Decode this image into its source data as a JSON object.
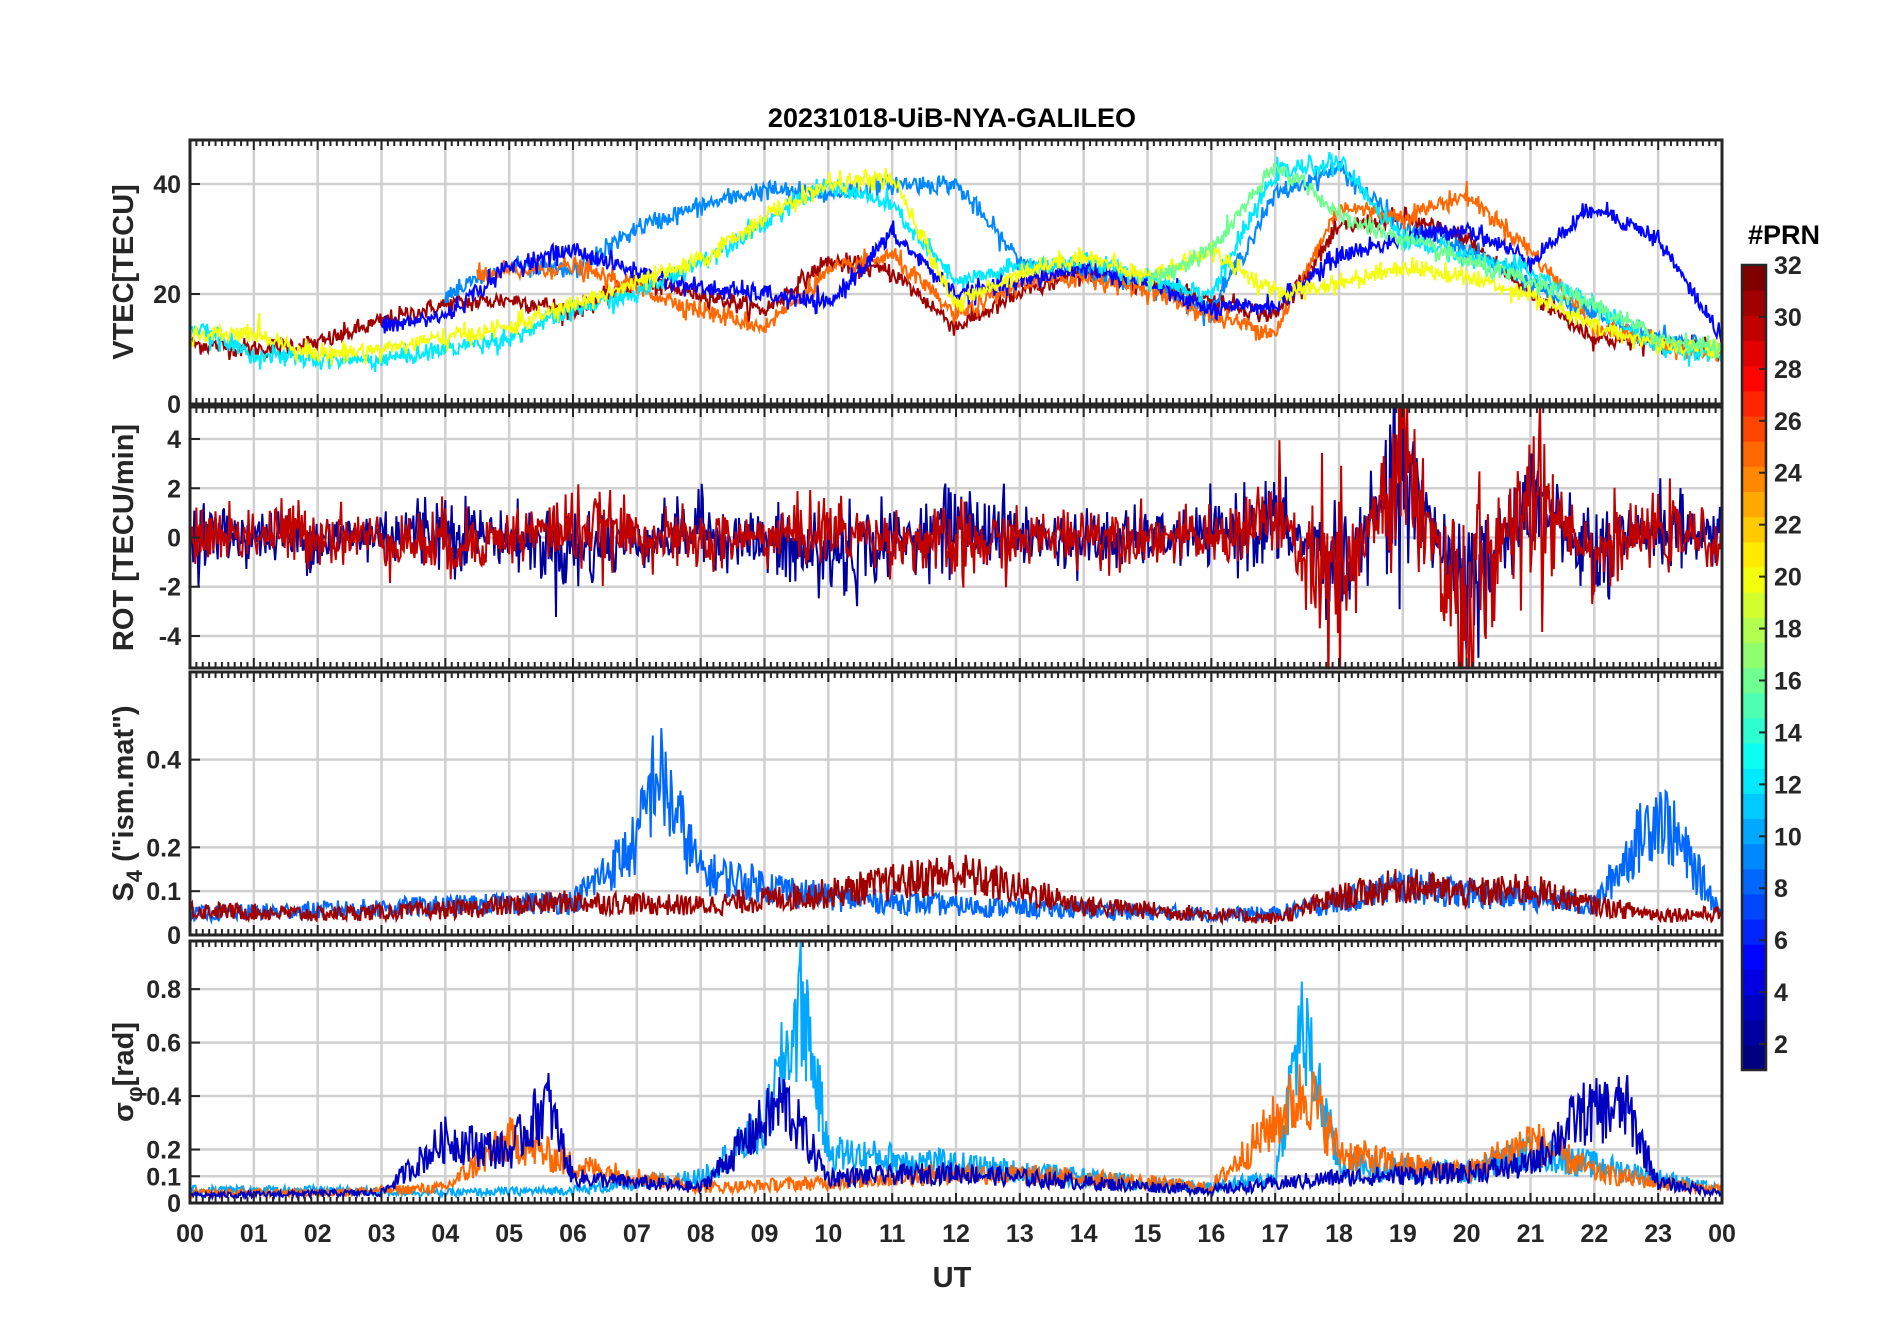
{
  "title": "20231018-UiB-NYA-GALILEO",
  "xlabel": "UT",
  "x_tick_labels": [
    "00",
    "01",
    "02",
    "03",
    "04",
    "05",
    "06",
    "07",
    "08",
    "09",
    "10",
    "11",
    "12",
    "13",
    "14",
    "15",
    "16",
    "17",
    "18",
    "19",
    "20",
    "21",
    "22",
    "23",
    "00"
  ],
  "colorbar": {
    "title": "#PRN",
    "range": [
      1,
      32
    ],
    "tick_labels": [
      "2",
      "4",
      "6",
      "8",
      "10",
      "12",
      "14",
      "16",
      "18",
      "20",
      "22",
      "24",
      "26",
      "28",
      "30",
      "32"
    ],
    "colormap": "jet",
    "levels": 32
  },
  "panels": [
    {
      "id": "vtec",
      "ylabel": "VTEC[TECU]",
      "ylim": [
        0,
        48
      ],
      "y_ticks": [
        0,
        20,
        40
      ],
      "y_tick_labels": [
        "0",
        "20",
        "40"
      ]
    },
    {
      "id": "rot",
      "ylabel": "ROT [TECU/min]",
      "ylim": [
        -5.3,
        5.3
      ],
      "y_ticks": [
        -4,
        -2,
        0,
        2,
        4
      ],
      "y_tick_labels": [
        "-4",
        "-2",
        "0",
        "2",
        "4"
      ]
    },
    {
      "id": "s4",
      "ylabel_main": "S",
      "ylabel_sub": "4",
      "ylabel_rest": " (\"ism.mat\")",
      "ylim": [
        0,
        0.6
      ],
      "y_ticks": [
        0,
        0.1,
        0.2,
        0.4
      ],
      "y_tick_labels": [
        "0",
        "0.1",
        "0.2",
        "0.4"
      ]
    },
    {
      "id": "sigma",
      "ylabel_main": "σ",
      "ylabel_sub": "φ",
      "ylabel_rest": "[rad]",
      "ylim": [
        0,
        0.98
      ],
      "y_ticks": [
        0,
        0.1,
        0.2,
        0.4,
        0.6,
        0.8
      ],
      "y_tick_labels": [
        "0",
        "0.1",
        "0.2",
        "0.4",
        "0.6",
        "0.8"
      ]
    }
  ],
  "chart_data": {
    "type": "line",
    "title": "20231018-UiB-NYA-GALILEO",
    "xlabel": "UT",
    "xlim": [
      0,
      24
    ],
    "x_unit": "hours",
    "color_by": "PRN",
    "note_series": "Per-satellite time series, approximate envelope shape per panel",
    "series": [
      {
        "prn": 31,
        "panel": "vtec",
        "x": [
          0,
          1,
          2,
          3,
          4,
          5,
          6,
          7,
          8,
          9,
          10,
          11,
          12,
          13,
          14,
          15,
          16,
          17,
          18,
          19,
          20,
          21,
          22,
          23,
          24
        ],
        "y": [
          11,
          10,
          11,
          15,
          18,
          19,
          17,
          22,
          20,
          17,
          26,
          24,
          14,
          20,
          24,
          22,
          19,
          16,
          32,
          34,
          30,
          20,
          12,
          11,
          10
        ]
      },
      {
        "prn": 9,
        "panel": "vtec",
        "x": [
          4,
          5,
          6,
          7,
          8,
          9,
          10,
          11,
          12,
          13,
          14,
          15,
          16,
          17,
          18,
          19,
          20,
          21,
          22,
          23,
          24
        ],
        "y": [
          20,
          25,
          24,
          32,
          36,
          39,
          38,
          40,
          40,
          26,
          24,
          22,
          17,
          38,
          43,
          32,
          28,
          22,
          16,
          12,
          10
        ]
      },
      {
        "prn": 25,
        "panel": "vtec",
        "x": [
          4.5,
          5,
          6,
          7,
          8,
          9,
          10,
          11,
          12,
          13,
          14,
          15,
          16,
          17,
          18,
          19,
          20,
          21,
          22,
          23,
          24
        ],
        "y": [
          23,
          24,
          25,
          21,
          17,
          14,
          24,
          27,
          16,
          22,
          23,
          21,
          16,
          13,
          36,
          34,
          38,
          28,
          14,
          11,
          9
        ]
      },
      {
        "prn": 5,
        "panel": "vtec",
        "x": [
          3,
          4,
          5,
          6,
          7,
          8,
          9,
          10,
          11,
          12,
          13,
          14,
          15,
          16,
          17,
          18,
          19,
          20,
          21,
          22,
          23,
          24
        ],
        "y": [
          14,
          16,
          25,
          28,
          24,
          21,
          20,
          18,
          31,
          20,
          22,
          25,
          22,
          17,
          18,
          27,
          30,
          32,
          26,
          36,
          30,
          12
        ]
      },
      {
        "prn": 12,
        "panel": "vtec",
        "x": [
          0,
          1,
          2,
          3,
          4,
          5,
          6,
          7,
          8,
          9,
          10,
          11,
          12,
          13,
          14,
          15,
          16,
          17,
          18,
          19,
          20,
          21,
          22,
          23,
          24
        ],
        "y": [
          14,
          9,
          8,
          8,
          10,
          12,
          17,
          20,
          26,
          33,
          40,
          36,
          22,
          25,
          26,
          23,
          20,
          42,
          44,
          30,
          27,
          24,
          18,
          10,
          9
        ]
      },
      {
        "prn": 20,
        "panel": "vtec",
        "x": [
          0,
          1,
          2,
          3,
          4,
          5,
          6,
          7,
          8,
          9,
          10,
          11,
          12,
          13,
          14,
          15,
          16,
          17,
          18,
          19,
          20,
          21,
          22,
          23,
          24
        ],
        "y": [
          12,
          13,
          9,
          10,
          12,
          14,
          18,
          22,
          26,
          34,
          40,
          41,
          18,
          24,
          27,
          23,
          28,
          20,
          22,
          25,
          23,
          20,
          14,
          11,
          10
        ]
      },
      {
        "prn": 16,
        "panel": "vtec",
        "x": [
          15,
          16,
          17,
          17.5,
          18,
          19,
          20,
          21,
          22,
          23,
          24
        ],
        "y": [
          22,
          28,
          43,
          40,
          34,
          30,
          26,
          22,
          18,
          12,
          10
        ]
      },
      {
        "prn": 2,
        "panel": "rot",
        "x": [
          0,
          2,
          4,
          6,
          8,
          10,
          12,
          14,
          16,
          17,
          18,
          19,
          20,
          21,
          22,
          23,
          24
        ],
        "y": [
          0.2,
          -0.1,
          0.4,
          -0.5,
          0.3,
          -0.8,
          0.5,
          -0.2,
          0.1,
          0.6,
          -1.2,
          2.1,
          -1.8,
          1.4,
          -0.9,
          0.4,
          0
        ]
      },
      {
        "prn": 30,
        "panel": "rot",
        "x": [
          0,
          2,
          4,
          6,
          8,
          10,
          12,
          14,
          16,
          17,
          18,
          19,
          20,
          21,
          22,
          23,
          24
        ],
        "y": [
          0.1,
          0.2,
          -0.3,
          0.4,
          -0.2,
          0.3,
          -0.4,
          0.2,
          -0.1,
          0.8,
          -2.5,
          3.1,
          -3.4,
          2.2,
          -0.6,
          0.3,
          -0.2
        ]
      },
      {
        "prn": 8,
        "panel": "s4",
        "x": [
          0,
          2,
          4,
          6,
          7,
          7.3,
          8,
          9,
          10,
          12,
          14,
          16,
          17,
          18,
          19,
          20,
          21,
          22,
          23,
          24
        ],
        "y": [
          0.05,
          0.06,
          0.07,
          0.08,
          0.22,
          0.4,
          0.15,
          0.12,
          0.09,
          0.07,
          0.06,
          0.05,
          0.05,
          0.08,
          0.12,
          0.1,
          0.09,
          0.07,
          0.3,
          0.05
        ]
      },
      {
        "prn": 31,
        "panel": "s4",
        "x": [
          0,
          2,
          4,
          6,
          8,
          10,
          12,
          14,
          16,
          17,
          18,
          19,
          20,
          21,
          22,
          23,
          24
        ],
        "y": [
          0.06,
          0.05,
          0.06,
          0.08,
          0.07,
          0.1,
          0.15,
          0.07,
          0.05,
          0.04,
          0.09,
          0.12,
          0.1,
          0.11,
          0.07,
          0.05,
          0.05
        ]
      },
      {
        "prn": 10,
        "panel": "sigma",
        "x": [
          0,
          2,
          4,
          6,
          8,
          9,
          9.6,
          10,
          12,
          14,
          16,
          17,
          17.4,
          18,
          20,
          21,
          22,
          23,
          24
        ],
        "y": [
          0.05,
          0.05,
          0.04,
          0.05,
          0.1,
          0.3,
          0.8,
          0.2,
          0.15,
          0.1,
          0.06,
          0.1,
          0.7,
          0.15,
          0.12,
          0.2,
          0.15,
          0.1,
          0.05
        ]
      },
      {
        "prn": 25,
        "panel": "sigma",
        "x": [
          0,
          2,
          3,
          4,
          5,
          6,
          8,
          10,
          12,
          14,
          16,
          17.5,
          18,
          19,
          20,
          21,
          22,
          23,
          24
        ],
        "y": [
          0.04,
          0.04,
          0.05,
          0.06,
          0.25,
          0.15,
          0.06,
          0.08,
          0.12,
          0.1,
          0.06,
          0.45,
          0.2,
          0.15,
          0.12,
          0.25,
          0.12,
          0.08,
          0.05
        ]
      },
      {
        "prn": 3,
        "panel": "sigma",
        "x": [
          0,
          3,
          4,
          5,
          5.6,
          6,
          8,
          9.3,
          10,
          12,
          14,
          16,
          18,
          20,
          21,
          21.8,
          22.5,
          23,
          24
        ],
        "y": [
          0.03,
          0.04,
          0.25,
          0.2,
          0.4,
          0.1,
          0.06,
          0.4,
          0.1,
          0.12,
          0.08,
          0.05,
          0.1,
          0.12,
          0.15,
          0.35,
          0.38,
          0.08,
          0.04
        ]
      }
    ]
  }
}
